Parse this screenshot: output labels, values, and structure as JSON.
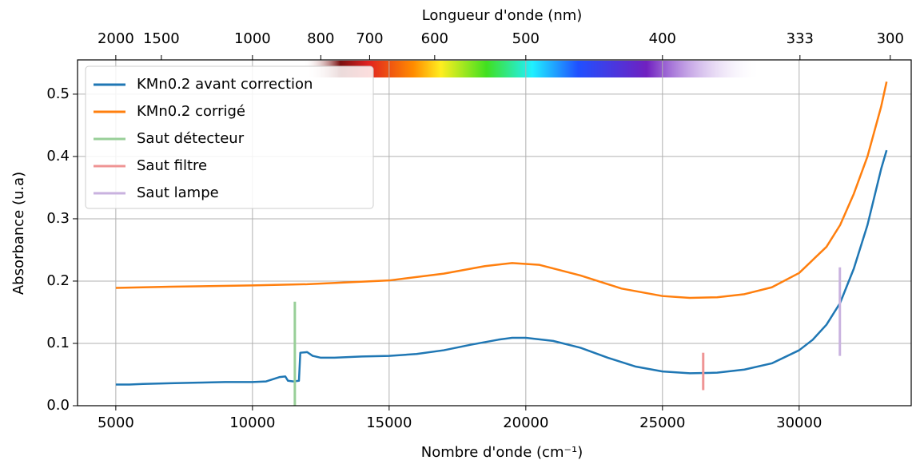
{
  "chart_data": {
    "type": "line",
    "x_label": "Nombre d'onde (cm⁻¹)",
    "y_label": "Absorbance (u.a)",
    "top_label": "Longueur d'onde (nm)",
    "xlim": [
      3600,
      34100
    ],
    "ylim": [
      0,
      0.555
    ],
    "xticks": [
      5000,
      10000,
      15000,
      20000,
      25000,
      30000
    ],
    "yticks": [
      {
        "value": 0,
        "label": "0.0"
      },
      0.1,
      0.2,
      0.3,
      0.4,
      0.5
    ],
    "top_ticks": [
      2000,
      1500,
      1000,
      800,
      700,
      600,
      500,
      400,
      333,
      300
    ],
    "grid": true,
    "legend": "upper left",
    "series": [
      {
        "name": "KMn0.2 avant correction",
        "color": "#1f77b4",
        "x": [
          5000,
          5500,
          6000,
          7000,
          8000,
          9000,
          10000,
          10500,
          11000,
          11200,
          11300,
          11500,
          11700,
          11750,
          12000,
          12200,
          12500,
          13000,
          14000,
          15000,
          16000,
          17000,
          18000,
          19000,
          19500,
          20000,
          21000,
          22000,
          23000,
          24000,
          25000,
          26000,
          27000,
          28000,
          29000,
          30000,
          30500,
          31000,
          31500,
          32000,
          32500,
          33000,
          33200
        ],
        "values": [
          0.034,
          0.034,
          0.035,
          0.036,
          0.037,
          0.038,
          0.038,
          0.039,
          0.046,
          0.047,
          0.04,
          0.039,
          0.04,
          0.085,
          0.086,
          0.08,
          0.077,
          0.077,
          0.079,
          0.08,
          0.083,
          0.089,
          0.098,
          0.106,
          0.109,
          0.109,
          0.104,
          0.093,
          0.077,
          0.063,
          0.055,
          0.052,
          0.053,
          0.058,
          0.068,
          0.089,
          0.106,
          0.13,
          0.165,
          0.22,
          0.29,
          0.38,
          0.41
        ]
      },
      {
        "name": "KMn0.2 corrigé",
        "color": "#ff7f0e",
        "x": [
          5000,
          7000,
          10000,
          12000,
          15000,
          17000,
          18500,
          19500,
          20500,
          22000,
          23500,
          25000,
          26000,
          27000,
          28000,
          29000,
          30000,
          31000,
          31500,
          32000,
          32500,
          33000,
          33200
        ],
        "values": [
          0.189,
          0.191,
          0.193,
          0.195,
          0.201,
          0.212,
          0.224,
          0.229,
          0.226,
          0.209,
          0.188,
          0.176,
          0.173,
          0.174,
          0.179,
          0.19,
          0.213,
          0.255,
          0.29,
          0.34,
          0.4,
          0.48,
          0.52
        ]
      },
      {
        "name": "Saut détecteur",
        "color": "#98cf98",
        "x": [
          11550,
          11550
        ],
        "values": [
          0,
          0.167
        ]
      },
      {
        "name": "Saut filtre",
        "color": "#ef9494",
        "x": [
          26490,
          26490
        ],
        "values": [
          0.025,
          0.085
        ]
      },
      {
        "name": "Saut lampe",
        "color": "#c9b2df",
        "x": [
          31490,
          31490
        ],
        "values": [
          0.08,
          0.222
        ]
      }
    ]
  }
}
